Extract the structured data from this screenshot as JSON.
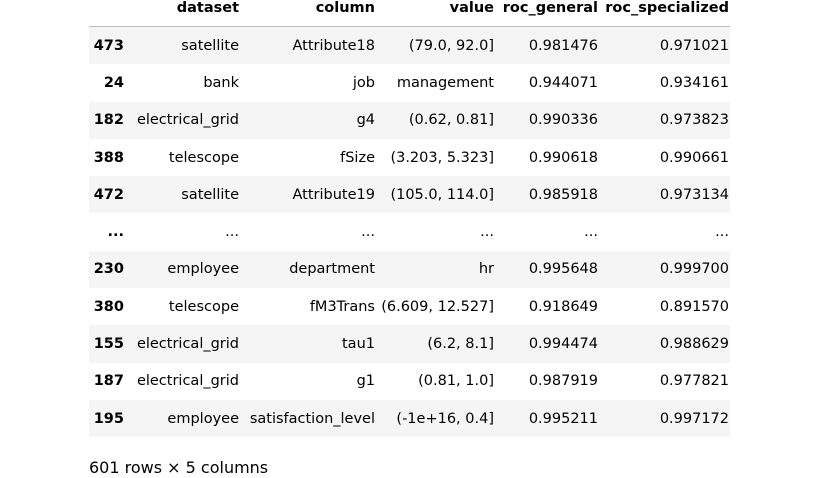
{
  "columns": {
    "index": "",
    "dataset": "dataset",
    "column": "column",
    "value": "value",
    "roc_general": "roc_general",
    "roc_specialized": "roc_specialized"
  },
  "rows": [
    {
      "index": "473",
      "dataset": "satellite",
      "column": "Attribute18",
      "value": "(79.0, 92.0]",
      "roc_general": "0.981476",
      "roc_specialized": "0.971021"
    },
    {
      "index": "24",
      "dataset": "bank",
      "column": "job",
      "value": "management",
      "roc_general": "0.944071",
      "roc_specialized": "0.934161"
    },
    {
      "index": "182",
      "dataset": "electrical_grid",
      "column": "g4",
      "value": "(0.62, 0.81]",
      "roc_general": "0.990336",
      "roc_specialized": "0.973823"
    },
    {
      "index": "388",
      "dataset": "telescope",
      "column": "fSize",
      "value": "(3.203, 5.323]",
      "roc_general": "0.990618",
      "roc_specialized": "0.990661"
    },
    {
      "index": "472",
      "dataset": "satellite",
      "column": "Attribute19",
      "value": "(105.0, 114.0]",
      "roc_general": "0.985918",
      "roc_specialized": "0.973134"
    },
    {
      "index": "...",
      "dataset": "...",
      "column": "...",
      "value": "...",
      "roc_general": "...",
      "roc_specialized": "..."
    },
    {
      "index": "230",
      "dataset": "employee",
      "column": "department",
      "value": "hr",
      "roc_general": "0.995648",
      "roc_specialized": "0.999700"
    },
    {
      "index": "380",
      "dataset": "telescope",
      "column": "fM3Trans",
      "value": "(6.609, 12.527]",
      "roc_general": "0.918649",
      "roc_specialized": "0.891570"
    },
    {
      "index": "155",
      "dataset": "electrical_grid",
      "column": "tau1",
      "value": "(6.2, 8.1]",
      "roc_general": "0.994474",
      "roc_specialized": "0.988629"
    },
    {
      "index": "187",
      "dataset": "electrical_grid",
      "column": "g1",
      "value": "(0.81, 1.0]",
      "roc_general": "0.987919",
      "roc_specialized": "0.977821"
    },
    {
      "index": "195",
      "dataset": "employee",
      "column": "satisfaction_level",
      "value": "(-1e+16, 0.4]",
      "roc_general": "0.995211",
      "roc_specialized": "0.997172"
    }
  ],
  "footer": "601 rows × 5 columns"
}
